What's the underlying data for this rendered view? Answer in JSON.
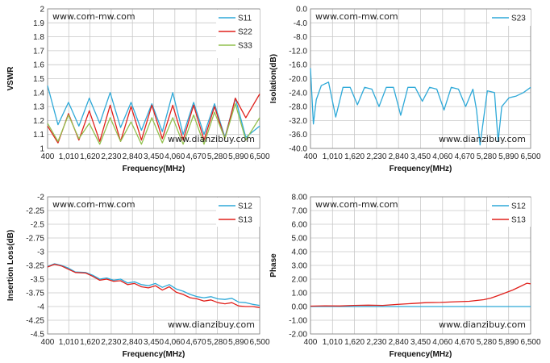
{
  "colors": {
    "s11": "#2ea9d8",
    "s22": "#e0201b",
    "s33": "#92c04f",
    "s23": "#2ea9d8",
    "s12": "#2ea9d8",
    "s13": "#e0201b"
  },
  "chart_data": [
    {
      "id": "vswr",
      "type": "line",
      "xlabel": "Frequency(MHz)",
      "ylabel": "VSWR",
      "xlim": [
        400,
        6500
      ],
      "ylim": [
        1,
        2
      ],
      "xticks": [
        "400",
        "1,010",
        "1,620",
        "2,230",
        "2,840",
        "3,450",
        "4,060",
        "4,670",
        "5,280",
        "5,890",
        "6,500"
      ],
      "yticks": [
        "1",
        "1.1",
        "1.2",
        "1.3",
        "1.4",
        "1.5",
        "1.6",
        "1.7",
        "1.8",
        "1.9",
        "2"
      ],
      "ytick_values": [
        1,
        1.1,
        1.2,
        1.3,
        1.4,
        1.5,
        1.6,
        1.7,
        1.8,
        1.9,
        2
      ],
      "watermark_top": "www.com-mw.com",
      "watermark_bottom": "www.dianzibuy.com",
      "legend_position": "top-right",
      "grid": true,
      "series": [
        {
          "name": "S11",
          "color": "#2ea9d8",
          "x": [
            400,
            700,
            1000,
            1300,
            1600,
            1900,
            2200,
            2500,
            2800,
            3100,
            3400,
            3700,
            4000,
            4300,
            4600,
            4900,
            5200,
            5500,
            5800,
            6100,
            6500
          ],
          "y": [
            1.45,
            1.17,
            1.33,
            1.16,
            1.36,
            1.18,
            1.4,
            1.15,
            1.33,
            1.13,
            1.32,
            1.12,
            1.4,
            1.1,
            1.33,
            1.1,
            1.32,
            1.08,
            1.36,
            1.08,
            1.16
          ]
        },
        {
          "name": "S22",
          "color": "#e0201b",
          "x": [
            400,
            700,
            1000,
            1300,
            1600,
            1900,
            2200,
            2500,
            2800,
            3100,
            3400,
            3700,
            4000,
            4300,
            4600,
            4900,
            5200,
            5500,
            5800,
            6100,
            6500
          ],
          "y": [
            1.16,
            1.04,
            1.25,
            1.06,
            1.27,
            1.05,
            1.31,
            1.05,
            1.3,
            1.06,
            1.31,
            1.07,
            1.31,
            1.06,
            1.31,
            1.06,
            1.3,
            1.07,
            1.36,
            1.22,
            1.39
          ]
        },
        {
          "name": "S33",
          "color": "#92c04f",
          "x": [
            400,
            700,
            1000,
            1300,
            1600,
            1900,
            2200,
            2500,
            2800,
            3100,
            3400,
            3700,
            4000,
            4300,
            4600,
            4900,
            5200,
            5500,
            5800,
            6100,
            6500
          ],
          "y": [
            1.18,
            1.05,
            1.24,
            1.07,
            1.18,
            1.03,
            1.22,
            1.05,
            1.19,
            1.03,
            1.22,
            1.04,
            1.22,
            1.03,
            1.24,
            1.03,
            1.26,
            1.07,
            1.32,
            1.06,
            1.22
          ]
        }
      ]
    },
    {
      "id": "isolation",
      "type": "line",
      "xlabel": "Frequency(MHz)",
      "ylabel": "Isolation(dB)",
      "xlim": [
        400,
        6500
      ],
      "ylim": [
        -40,
        0
      ],
      "xticks": [
        "400",
        "1,010",
        "1,620",
        "2,230",
        "2,840",
        "3,450",
        "4,060",
        "4,670",
        "5,280",
        "5,890",
        "6,500"
      ],
      "yticks": [
        "0.0",
        "-4.0",
        "-8.0",
        "-12.0",
        "-16.0",
        "-20.0",
        "-24.0",
        "-28.0",
        "-32.0",
        "-36.0",
        "-40.0"
      ],
      "ytick_values": [
        0,
        -4,
        -8,
        -12,
        -16,
        -20,
        -24,
        -28,
        -32,
        -36,
        -40
      ],
      "watermark_top": "www.com-mw.com",
      "watermark_bottom": "www.dianzibuy.com",
      "legend_position": "top-right",
      "grid": true,
      "series": [
        {
          "name": "S23",
          "color": "#2ea9d8",
          "x": [
            400,
            480,
            560,
            700,
            900,
            1100,
            1300,
            1500,
            1700,
            1900,
            2100,
            2300,
            2500,
            2700,
            2900,
            3100,
            3300,
            3500,
            3700,
            3900,
            4100,
            4300,
            4500,
            4700,
            4900,
            5000,
            5100,
            5300,
            5500,
            5600,
            5700,
            5900,
            6100,
            6300,
            6500
          ],
          "y": [
            -17,
            -33,
            -26,
            -22,
            -21,
            -31,
            -22.5,
            -22.5,
            -27.5,
            -22.5,
            -23,
            -28,
            -22.5,
            -22.5,
            -30.5,
            -22.5,
            -22.5,
            -26.5,
            -22.5,
            -23,
            -29,
            -22.5,
            -23,
            -28,
            -23,
            -29,
            -39,
            -23.5,
            -24,
            -38,
            -28,
            -25.5,
            -25,
            -24,
            -22.5
          ]
        }
      ]
    },
    {
      "id": "insertion",
      "type": "line",
      "xlabel": "Frequency(MHz)",
      "ylabel": "Insertion Loss(dB)",
      "xlim": [
        400,
        6500
      ],
      "ylim": [
        -4.5,
        -2
      ],
      "xticks": [
        "400",
        "1,010",
        "1,620",
        "2,230",
        "2,840",
        "3,450",
        "4,060",
        "4,670",
        "5,280",
        "5,890",
        "6,500"
      ],
      "yticks": [
        "-2",
        "-2.25",
        "-2.5",
        "-2.75",
        "-3",
        "-3.25",
        "-3.5",
        "-3.75",
        "-4",
        "-4.25",
        "-4.5"
      ],
      "ytick_values": [
        -2,
        -2.25,
        -2.5,
        -2.75,
        -3,
        -3.25,
        -3.5,
        -3.75,
        -4,
        -4.25,
        -4.5
      ],
      "watermark_top": "www.com-mw.com",
      "watermark_bottom": "www.dianzibuy.com",
      "legend_position": "top-right",
      "grid": true,
      "series": [
        {
          "name": "S12",
          "color": "#2ea9d8",
          "x": [
            400,
            600,
            800,
            1000,
            1200,
            1500,
            1700,
            1900,
            2100,
            2300,
            2500,
            2700,
            2900,
            3100,
            3300,
            3500,
            3700,
            3900,
            4100,
            4300,
            4500,
            4700,
            4900,
            5100,
            5300,
            5500,
            5700,
            5900,
            6100,
            6300,
            6500
          ],
          "y": [
            -3.27,
            -3.22,
            -3.25,
            -3.3,
            -3.37,
            -3.38,
            -3.43,
            -3.5,
            -3.48,
            -3.52,
            -3.5,
            -3.57,
            -3.55,
            -3.6,
            -3.62,
            -3.58,
            -3.65,
            -3.6,
            -3.68,
            -3.72,
            -3.78,
            -3.82,
            -3.84,
            -3.82,
            -3.86,
            -3.87,
            -3.85,
            -3.92,
            -3.93,
            -3.96,
            -3.98
          ]
        },
        {
          "name": "S13",
          "color": "#e0201b",
          "x": [
            400,
            600,
            800,
            1000,
            1200,
            1500,
            1700,
            1900,
            2100,
            2300,
            2500,
            2700,
            2900,
            3100,
            3300,
            3500,
            3700,
            3900,
            4100,
            4300,
            4500,
            4700,
            4900,
            5100,
            5300,
            5500,
            5700,
            5900,
            6100,
            6300,
            6500
          ],
          "y": [
            -3.28,
            -3.23,
            -3.26,
            -3.32,
            -3.38,
            -3.39,
            -3.45,
            -3.52,
            -3.5,
            -3.54,
            -3.53,
            -3.6,
            -3.58,
            -3.64,
            -3.66,
            -3.62,
            -3.7,
            -3.64,
            -3.74,
            -3.78,
            -3.84,
            -3.86,
            -3.9,
            -3.88,
            -3.93,
            -3.95,
            -3.93,
            -3.99,
            -4.0,
            -4.0,
            -4.02
          ]
        }
      ]
    },
    {
      "id": "phase",
      "type": "line",
      "xlabel": "Frequency(MHz)",
      "ylabel": "Phase",
      "xlim": [
        400,
        6500
      ],
      "ylim": [
        -2,
        8
      ],
      "xticks": [
        "400",
        "1,010",
        "1,620",
        "2,230",
        "2,840",
        "3,450",
        "4,060",
        "4,670",
        "5,280",
        "5,890",
        "6,500"
      ],
      "yticks": [
        "8.00",
        "7.00",
        "6.00",
        "5.00",
        "4.00",
        "3.00",
        "2.00",
        "1.00",
        "0.00",
        "-1.00",
        "-2.00"
      ],
      "ytick_values": [
        8,
        7,
        6,
        5,
        4,
        3,
        2,
        1,
        0,
        -1,
        -2
      ],
      "watermark_top": "www.com-mw.com",
      "watermark_bottom": "www.dianzibuy.com",
      "legend_position": "top-right",
      "grid": true,
      "series": [
        {
          "name": "S12",
          "color": "#2ea9d8",
          "x": [
            400,
            1500,
            2600,
            3700,
            4800,
            5900,
            6500
          ],
          "y": [
            0,
            0,
            0,
            0,
            0,
            0,
            0
          ]
        },
        {
          "name": "S13",
          "color": "#e0201b",
          "x": [
            400,
            800,
            1200,
            1600,
            2000,
            2400,
            2800,
            3200,
            3600,
            4000,
            4400,
            4800,
            5200,
            5400,
            5600,
            5800,
            6000,
            6200,
            6400,
            6500
          ],
          "y": [
            0.03,
            0.05,
            0.04,
            0.08,
            0.1,
            0.08,
            0.15,
            0.22,
            0.28,
            0.3,
            0.35,
            0.38,
            0.5,
            0.62,
            0.8,
            1.0,
            1.2,
            1.45,
            1.7,
            1.65
          ]
        }
      ]
    }
  ]
}
